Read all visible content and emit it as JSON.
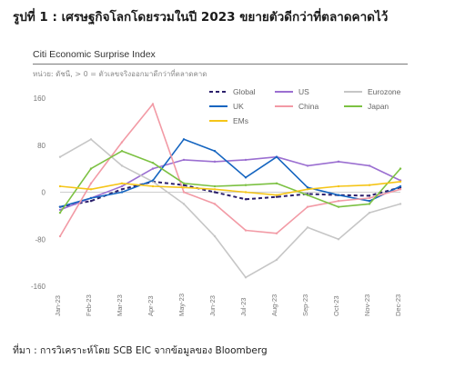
{
  "figure_title": "รูปที่ 1 : เศรษฐกิจโลกโดยรวมในปี 2023 ขยายตัวดีกว่าที่ตลาดคาดไว้",
  "source_note": "ที่มา : การวิเคราะห์โดย SCB EIC จากข้อมูลของ Bloomberg",
  "chart_data": {
    "type": "line",
    "title": "Citi Economic Surprise Index",
    "subtitle": "หน่วย: ดัชนี, > 0 = ตัวเลขจริงออกมาดีกว่าที่ตลาดคาด",
    "xlabel": "",
    "ylabel": "",
    "ylim": [
      -160,
      160
    ],
    "yticks": [
      160,
      80,
      0,
      -80,
      -160
    ],
    "x": [
      "Jan-23",
      "Feb-23",
      "Mar-23",
      "Apr-23",
      "May-23",
      "Jun-23",
      "Jul-23",
      "Aug-23",
      "Sep-23",
      "Oct-23",
      "Nov-23",
      "Dec-23"
    ],
    "grid": false,
    "legend_position": "top",
    "series": [
      {
        "name": "Global",
        "color": "#2b1f6b",
        "dash": "dashed",
        "values": [
          -25,
          -15,
          5,
          18,
          12,
          0,
          -12,
          -8,
          -3,
          -5,
          -6,
          8
        ]
      },
      {
        "name": "US",
        "color": "#9b6fd1",
        "dash": "solid",
        "values": [
          -30,
          -10,
          10,
          40,
          55,
          52,
          55,
          60,
          45,
          52,
          45,
          20
        ]
      },
      {
        "name": "Eurozone",
        "color": "#c6c6c6",
        "dash": "solid",
        "values": [
          60,
          90,
          45,
          18,
          -20,
          -75,
          -145,
          -115,
          -60,
          -80,
          -35,
          -20
        ]
      },
      {
        "name": "UK",
        "color": "#1565c0",
        "dash": "solid",
        "values": [
          -25,
          -10,
          0,
          20,
          90,
          70,
          25,
          60,
          8,
          -5,
          -15,
          10
        ]
      },
      {
        "name": "China",
        "color": "#f29aa5",
        "dash": "solid",
        "values": [
          -75,
          15,
          85,
          150,
          0,
          -20,
          -65,
          -70,
          -25,
          -15,
          -10,
          5
        ]
      },
      {
        "name": "Japan",
        "color": "#7cc142",
        "dash": "solid",
        "values": [
          -35,
          40,
          70,
          50,
          15,
          10,
          12,
          15,
          -5,
          -25,
          -20,
          40
        ]
      },
      {
        "name": "EMs",
        "color": "#f5c518",
        "dash": "solid",
        "values": [
          10,
          5,
          15,
          10,
          8,
          5,
          0,
          -5,
          5,
          10,
          12,
          18
        ]
      }
    ]
  }
}
